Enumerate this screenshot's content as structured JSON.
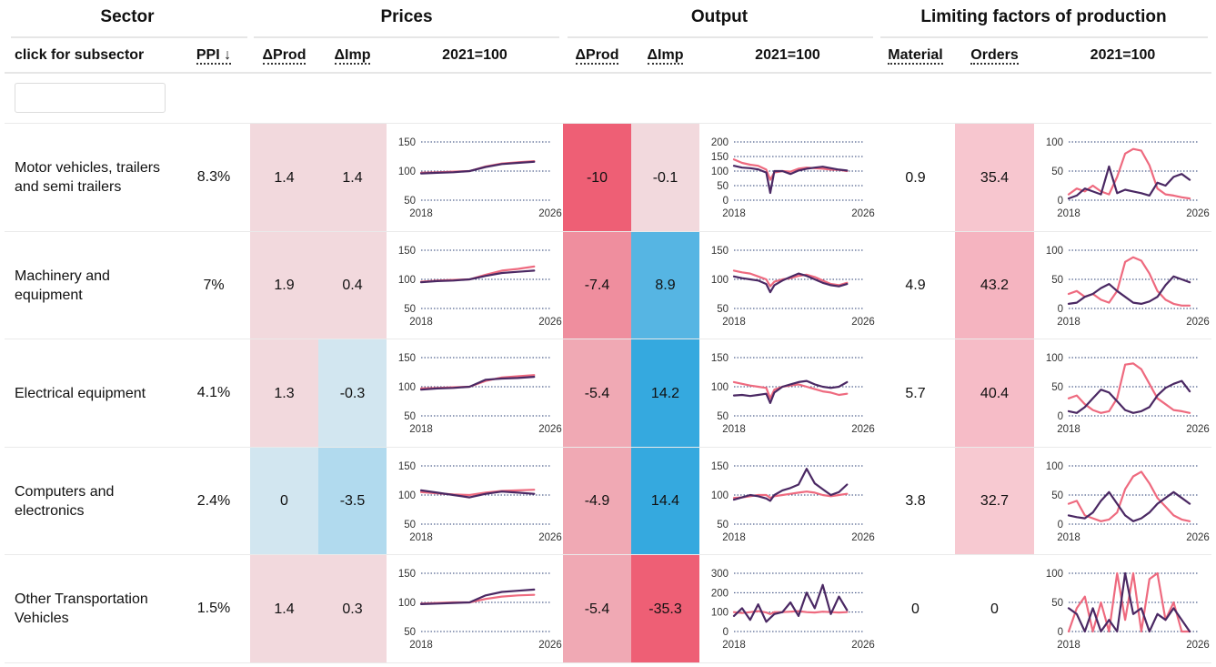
{
  "header": {
    "groups": [
      "Sector",
      "Prices",
      "Output",
      "Limiting factors of production"
    ],
    "columns": {
      "sector": "click for subsector",
      "ppi": "PPI ↓",
      "prices_dprod": "ΔProd",
      "prices_dimp": "ΔImp",
      "prices_chart": "2021=100",
      "output_dprod": "ΔProd",
      "output_dimp": "ΔImp",
      "output_chart": "2021=100",
      "material": "Material",
      "orders": "Orders",
      "limiting_chart": "2021=100"
    }
  },
  "filter": {
    "value": "",
    "placeholder": ""
  },
  "colors": {
    "series_dark": "#4a2863",
    "series_pink": "#ee6a7f",
    "gridline": "#2a3f75",
    "pos_strong": "#ee5f75",
    "neg_strong": "#35a9df"
  },
  "rows": [
    {
      "sector": "Motor vehicles, trailers and semi trailers",
      "ppi": "8.3%",
      "prices_dprod": "1.4",
      "prices_dprod_bg": "#f2d9dd",
      "prices_dimp": "1.4",
      "prices_dimp_bg": "#f2d9dd",
      "output_dprod": "-10",
      "output_dprod_bg": "#ee5f75",
      "output_dimp": "-0.1",
      "output_dimp_bg": "#f2d9dd",
      "material": "0.9",
      "material_bg": "#ffffff",
      "orders": "35.4",
      "orders_bg": "#f7c6cf"
    },
    {
      "sector": "Machinery and equipment",
      "ppi": "7%",
      "prices_dprod": "1.9",
      "prices_dprod_bg": "#f2d9dd",
      "prices_dimp": "0.4",
      "prices_dimp_bg": "#f2d9dd",
      "output_dprod": "-7.4",
      "output_dprod_bg": "#ef8e9e",
      "output_dimp": "8.9",
      "output_dimp_bg": "#56b5e3",
      "material": "4.9",
      "material_bg": "#ffffff",
      "orders": "43.2",
      "orders_bg": "#f5b4c0"
    },
    {
      "sector": "Electrical equipment",
      "ppi": "4.1%",
      "prices_dprod": "1.3",
      "prices_dprod_bg": "#f2d9dd",
      "prices_dimp": "-0.3",
      "prices_dimp_bg": "#d2e6f0",
      "output_dprod": "-5.4",
      "output_dprod_bg": "#f0a9b4",
      "output_dimp": "14.2",
      "output_dimp_bg": "#35a9df",
      "material": "5.7",
      "material_bg": "#ffffff",
      "orders": "40.4",
      "orders_bg": "#f6bcc7"
    },
    {
      "sector": "Computers and electronics",
      "ppi": "2.4%",
      "prices_dprod": "0",
      "prices_dprod_bg": "#d2e6f0",
      "prices_dimp": "-3.5",
      "prices_dimp_bg": "#b1daee",
      "output_dprod": "-4.9",
      "output_dprod_bg": "#f0a9b4",
      "output_dimp": "14.4",
      "output_dimp_bg": "#35a9df",
      "material": "3.8",
      "material_bg": "#ffffff",
      "orders": "32.7",
      "orders_bg": "#f7c9d1"
    },
    {
      "sector": "Other Transportation Vehicles",
      "ppi": "1.5%",
      "prices_dprod": "1.4",
      "prices_dprod_bg": "#f2d9dd",
      "prices_dimp": "0.3",
      "prices_dimp_bg": "#f2d9dd",
      "output_dprod": "-5.4",
      "output_dprod_bg": "#f0a9b4",
      "output_dimp": "-35.3",
      "output_dimp_bg": "#ee5f75",
      "material": "0",
      "material_bg": "#ffffff",
      "orders": "0",
      "orders_bg": "#ffffff"
    }
  ],
  "chart_data": [
    {
      "type": "line",
      "panel": "prices",
      "row": "Motor vehicles, trailers and semi trailers",
      "x": [
        2018,
        2019,
        2020,
        2021,
        2022,
        2023,
        2024,
        2025
      ],
      "x_ticks": [
        "2018",
        "2026"
      ],
      "y_ticks": [
        50,
        100,
        150
      ],
      "ylim": [
        50,
        150
      ],
      "series": [
        {
          "color": "#ee6a7f",
          "values": [
            97,
            98,
            99,
            100,
            108,
            113,
            115,
            117
          ]
        },
        {
          "color": "#4a2863",
          "values": [
            96,
            97,
            98,
            100,
            107,
            112,
            114,
            116
          ]
        }
      ]
    },
    {
      "type": "line",
      "panel": "output",
      "row": "Motor vehicles, trailers and semi trailers",
      "x": [
        2018,
        2018.5,
        2019,
        2019.5,
        2020,
        2020.25,
        2020.5,
        2021,
        2021.5,
        2022,
        2022.5,
        2023,
        2023.5,
        2024,
        2024.5,
        2025
      ],
      "x_ticks": [
        "2018",
        "2026"
      ],
      "y_ticks": [
        0,
        50,
        100,
        150,
        200
      ],
      "ylim": [
        0,
        200
      ],
      "series": [
        {
          "color": "#ee6a7f",
          "values": [
            140,
            128,
            122,
            118,
            105,
            70,
            95,
            100,
            98,
            108,
            112,
            110,
            108,
            105,
            104,
            100
          ]
        },
        {
          "color": "#4a2863",
          "values": [
            118,
            112,
            110,
            106,
            95,
            25,
            100,
            100,
            90,
            102,
            108,
            112,
            115,
            110,
            105,
            102
          ]
        }
      ]
    },
    {
      "type": "line",
      "panel": "limiting",
      "row": "Motor vehicles, trailers and semi trailers",
      "x": [
        2018,
        2018.5,
        2019,
        2019.5,
        2020,
        2020.5,
        2021,
        2021.5,
        2022,
        2022.5,
        2023,
        2023.5,
        2024,
        2024.5,
        2025,
        2025.5
      ],
      "x_ticks": [
        "2018",
        "2026"
      ],
      "y_ticks": [
        0,
        50,
        100
      ],
      "ylim": [
        0,
        100
      ],
      "series": [
        {
          "color": "#ee6a7f",
          "values": [
            10,
            20,
            15,
            25,
            15,
            10,
            40,
            80,
            88,
            85,
            60,
            20,
            10,
            8,
            5,
            3
          ]
        },
        {
          "color": "#4a2863",
          "values": [
            3,
            8,
            20,
            15,
            10,
            58,
            12,
            18,
            15,
            12,
            8,
            30,
            25,
            40,
            45,
            35
          ]
        }
      ]
    },
    {
      "type": "line",
      "panel": "prices",
      "row": "Machinery and equipment",
      "x": [
        2018,
        2019,
        2020,
        2021,
        2022,
        2023,
        2024,
        2025
      ],
      "x_ticks": [
        "2018",
        "2026"
      ],
      "y_ticks": [
        50,
        100,
        150
      ],
      "ylim": [
        50,
        150
      ],
      "series": [
        {
          "color": "#ee6a7f",
          "values": [
            96,
            98,
            99,
            100,
            108,
            115,
            118,
            122
          ]
        },
        {
          "color": "#4a2863",
          "values": [
            95,
            97,
            98,
            100,
            106,
            111,
            113,
            115
          ]
        }
      ]
    },
    {
      "type": "line",
      "panel": "output",
      "row": "Machinery and equipment",
      "x": [
        2018,
        2018.5,
        2019,
        2019.5,
        2020,
        2020.25,
        2020.5,
        2021,
        2021.5,
        2022,
        2022.5,
        2023,
        2023.5,
        2024,
        2024.5,
        2025
      ],
      "x_ticks": [
        "2018",
        "2026"
      ],
      "y_ticks": [
        50,
        100,
        150
      ],
      "ylim": [
        50,
        150
      ],
      "series": [
        {
          "color": "#ee6a7f",
          "values": [
            115,
            112,
            110,
            105,
            100,
            88,
            96,
            100,
            102,
            106,
            108,
            104,
            98,
            92,
            90,
            94
          ]
        },
        {
          "color": "#4a2863",
          "values": [
            105,
            102,
            100,
            98,
            92,
            78,
            90,
            98,
            104,
            110,
            106,
            100,
            94,
            90,
            88,
            92
          ]
        }
      ]
    },
    {
      "type": "line",
      "panel": "limiting",
      "row": "Machinery and equipment",
      "x": [
        2018,
        2018.5,
        2019,
        2019.5,
        2020,
        2020.5,
        2021,
        2021.5,
        2022,
        2022.5,
        2023,
        2023.5,
        2024,
        2024.5,
        2025,
        2025.5
      ],
      "x_ticks": [
        "2018",
        "2026"
      ],
      "y_ticks": [
        0,
        50,
        100
      ],
      "ylim": [
        0,
        100
      ],
      "series": [
        {
          "color": "#ee6a7f",
          "values": [
            25,
            30,
            20,
            25,
            15,
            10,
            30,
            80,
            88,
            82,
            60,
            30,
            15,
            8,
            5,
            5
          ]
        },
        {
          "color": "#4a2863",
          "values": [
            8,
            10,
            20,
            25,
            35,
            42,
            30,
            20,
            10,
            8,
            12,
            20,
            40,
            55,
            50,
            45
          ]
        }
      ]
    },
    {
      "type": "line",
      "panel": "prices",
      "row": "Electrical equipment",
      "x": [
        2018,
        2019,
        2020,
        2021,
        2022,
        2023,
        2024,
        2025
      ],
      "x_ticks": [
        "2018",
        "2026"
      ],
      "y_ticks": [
        50,
        100,
        150
      ],
      "ylim": [
        50,
        150
      ],
      "series": [
        {
          "color": "#ee6a7f",
          "values": [
            97,
            98,
            99,
            100,
            110,
            116,
            118,
            120
          ]
        },
        {
          "color": "#4a2863",
          "values": [
            95,
            97,
            98,
            100,
            112,
            114,
            115,
            117
          ]
        }
      ]
    },
    {
      "type": "line",
      "panel": "output",
      "row": "Electrical equipment",
      "x": [
        2018,
        2018.5,
        2019,
        2019.5,
        2020,
        2020.25,
        2020.5,
        2021,
        2021.5,
        2022,
        2022.5,
        2023,
        2023.5,
        2024,
        2024.5,
        2025
      ],
      "x_ticks": [
        "2018",
        "2026"
      ],
      "y_ticks": [
        50,
        100,
        150
      ],
      "ylim": [
        50,
        150
      ],
      "series": [
        {
          "color": "#ee6a7f",
          "values": [
            108,
            105,
            102,
            100,
            98,
            80,
            95,
            100,
            102,
            104,
            100,
            96,
            92,
            90,
            86,
            88
          ]
        },
        {
          "color": "#4a2863",
          "values": [
            85,
            86,
            84,
            86,
            88,
            72,
            90,
            100,
            104,
            108,
            110,
            104,
            100,
            98,
            100,
            108
          ]
        }
      ]
    },
    {
      "type": "line",
      "panel": "limiting",
      "row": "Electrical equipment",
      "x": [
        2018,
        2018.5,
        2019,
        2019.5,
        2020,
        2020.5,
        2021,
        2021.5,
        2022,
        2022.5,
        2023,
        2023.5,
        2024,
        2024.5,
        2025,
        2025.5
      ],
      "x_ticks": [
        "2018",
        "2026"
      ],
      "y_ticks": [
        0,
        50,
        100
      ],
      "ylim": [
        0,
        100
      ],
      "series": [
        {
          "color": "#ee6a7f",
          "values": [
            30,
            35,
            20,
            10,
            5,
            8,
            30,
            88,
            90,
            80,
            55,
            30,
            20,
            10,
            8,
            5
          ]
        },
        {
          "color": "#4a2863",
          "values": [
            8,
            5,
            15,
            30,
            45,
            40,
            25,
            10,
            5,
            8,
            15,
            35,
            48,
            55,
            60,
            42
          ]
        }
      ]
    },
    {
      "type": "line",
      "panel": "prices",
      "row": "Computers and electronics",
      "x": [
        2018,
        2019,
        2020,
        2021,
        2022,
        2023,
        2024,
        2025
      ],
      "x_ticks": [
        "2018",
        "2026"
      ],
      "y_ticks": [
        50,
        100,
        150
      ],
      "ylim": [
        50,
        150
      ],
      "series": [
        {
          "color": "#ee6a7f",
          "values": [
            105,
            103,
            101,
            100,
            104,
            107,
            108,
            109
          ]
        },
        {
          "color": "#4a2863",
          "values": [
            108,
            104,
            100,
            96,
            102,
            106,
            104,
            102
          ]
        }
      ]
    },
    {
      "type": "line",
      "panel": "output",
      "row": "Computers and electronics",
      "x": [
        2018,
        2018.5,
        2019,
        2019.5,
        2020,
        2020.25,
        2020.5,
        2021,
        2021.5,
        2022,
        2022.5,
        2023,
        2023.5,
        2024,
        2024.5,
        2025
      ],
      "x_ticks": [
        "2018",
        "2026"
      ],
      "y_ticks": [
        50,
        100,
        150
      ],
      "ylim": [
        50,
        150
      ],
      "series": [
        {
          "color": "#ee6a7f",
          "values": [
            95,
            96,
            98,
            100,
            100,
            95,
            98,
            100,
            102,
            104,
            106,
            104,
            100,
            98,
            100,
            102
          ]
        },
        {
          "color": "#4a2863",
          "values": [
            92,
            96,
            100,
            98,
            94,
            90,
            100,
            108,
            112,
            118,
            145,
            120,
            110,
            100,
            105,
            118
          ]
        }
      ]
    },
    {
      "type": "line",
      "panel": "limiting",
      "row": "Computers and electronics",
      "x": [
        2018,
        2018.5,
        2019,
        2019.5,
        2020,
        2020.5,
        2021,
        2021.5,
        2022,
        2022.5,
        2023,
        2023.5,
        2024,
        2024.5,
        2025,
        2025.5
      ],
      "x_ticks": [
        "2018",
        "2026"
      ],
      "y_ticks": [
        0,
        50,
        100
      ],
      "ylim": [
        0,
        100
      ],
      "series": [
        {
          "color": "#ee6a7f",
          "values": [
            35,
            40,
            15,
            10,
            5,
            8,
            20,
            60,
            82,
            90,
            70,
            45,
            30,
            15,
            8,
            5
          ]
        },
        {
          "color": "#4a2863",
          "values": [
            15,
            12,
            10,
            20,
            40,
            55,
            35,
            15,
            5,
            10,
            20,
            35,
            45,
            55,
            45,
            35
          ]
        }
      ]
    },
    {
      "type": "line",
      "panel": "prices",
      "row": "Other Transportation Vehicles",
      "x": [
        2018,
        2019,
        2020,
        2021,
        2022,
        2023,
        2024,
        2025
      ],
      "x_ticks": [
        "2018",
        "2026"
      ],
      "y_ticks": [
        50,
        100,
        150
      ],
      "ylim": [
        50,
        150
      ],
      "series": [
        {
          "color": "#ee6a7f",
          "values": [
            98,
            99,
            100,
            100,
            106,
            110,
            112,
            113
          ]
        },
        {
          "color": "#4a2863",
          "values": [
            97,
            98,
            99,
            100,
            112,
            118,
            120,
            122
          ]
        }
      ]
    },
    {
      "type": "line",
      "panel": "output",
      "row": "Other Transportation Vehicles",
      "x": [
        2018,
        2018.5,
        2019,
        2019.5,
        2020,
        2020.25,
        2020.5,
        2021,
        2021.5,
        2022,
        2022.5,
        2023,
        2023.5,
        2024,
        2024.5,
        2025
      ],
      "x_ticks": [
        "2018",
        "2026"
      ],
      "y_ticks": [
        0,
        100,
        200,
        300
      ],
      "ylim": [
        0,
        300
      ],
      "series": [
        {
          "color": "#ee6a7f",
          "values": [
            100,
            95,
            100,
            105,
            98,
            90,
            100,
            100,
            102,
            105,
            100,
            98,
            102,
            100,
            98,
            100
          ]
        },
        {
          "color": "#4a2863",
          "values": [
            80,
            120,
            60,
            140,
            50,
            70,
            90,
            100,
            150,
            80,
            200,
            120,
            240,
            90,
            180,
            110
          ]
        }
      ]
    },
    {
      "type": "line",
      "panel": "limiting",
      "row": "Other Transportation Vehicles",
      "x": [
        2018,
        2018.5,
        2019,
        2019.5,
        2020,
        2020.5,
        2021,
        2021.5,
        2022,
        2022.5,
        2023,
        2023.5,
        2024,
        2024.5,
        2025,
        2025.5
      ],
      "x_ticks": [
        "2018",
        "2026"
      ],
      "y_ticks": [
        0,
        50,
        100
      ],
      "ylim": [
        0,
        100
      ],
      "series": [
        {
          "color": "#ee6a7f",
          "values": [
            0,
            40,
            60,
            0,
            50,
            0,
            100,
            20,
            100,
            0,
            90,
            100,
            20,
            50,
            0,
            0
          ]
        },
        {
          "color": "#4a2863",
          "values": [
            40,
            30,
            0,
            40,
            0,
            20,
            0,
            100,
            30,
            40,
            0,
            30,
            20,
            40,
            20,
            0
          ]
        }
      ]
    }
  ]
}
